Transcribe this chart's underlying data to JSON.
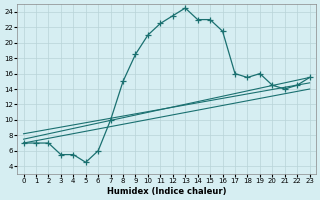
{
  "xlabel": "Humidex (Indice chaleur)",
  "ylabel": "",
  "xlim": [
    -0.5,
    23.5
  ],
  "ylim": [
    3,
    25
  ],
  "yticks": [
    4,
    6,
    8,
    10,
    12,
    14,
    16,
    18,
    20,
    22,
    24
  ],
  "xticks": [
    0,
    1,
    2,
    3,
    4,
    5,
    6,
    7,
    8,
    9,
    10,
    11,
    12,
    13,
    14,
    15,
    16,
    17,
    18,
    19,
    20,
    21,
    22,
    23
  ],
  "bg_color": "#d6eef2",
  "grid_color": "#b8d4d8",
  "line_color": "#1a7070",
  "line1_x": [
    0,
    1,
    2,
    3,
    4,
    5,
    6,
    7,
    8,
    9,
    10,
    11,
    12,
    13,
    14,
    15,
    16,
    17,
    18,
    19,
    20,
    21,
    22,
    23
  ],
  "line1_y": [
    7.0,
    7.0,
    7.0,
    5.5,
    5.5,
    4.5,
    6.0,
    10.0,
    15.0,
    18.5,
    21.0,
    22.5,
    23.5,
    24.5,
    23.0,
    23.0,
    21.5,
    16.0,
    15.5,
    16.0,
    14.5,
    14.0,
    14.5,
    15.5
  ],
  "line2_x": [
    0,
    23
  ],
  "line2_y": [
    7.5,
    15.5
  ],
  "line3_x": [
    0,
    23
  ],
  "line3_y": [
    8.2,
    14.8
  ],
  "line4_x": [
    0,
    23
  ],
  "line4_y": [
    7.0,
    14.0
  ]
}
